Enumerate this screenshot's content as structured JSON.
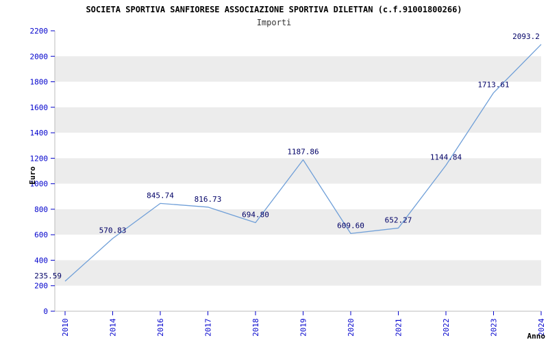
{
  "header": {
    "title": "SOCIETA SPORTIVA SANFIORESE ASSOCIAZIONE SPORTIVA DILETTAN (c.f.91001800266)",
    "subtitle": "Importi"
  },
  "chart_data": {
    "type": "line",
    "title": "SOCIETA SPORTIVA SANFIORESE ASSOCIAZIONE SPORTIVA DILETTAN (c.f.91001800266)",
    "subtitle": "Importi",
    "xlabel": "Anno",
    "ylabel": "Euro",
    "categories": [
      "2010",
      "2014",
      "2016",
      "2017",
      "2018",
      "2019",
      "2020",
      "2021",
      "2022",
      "2023",
      "2024"
    ],
    "values": [
      235.59,
      570.83,
      845.74,
      816.73,
      694.8,
      1187.86,
      609.6,
      652.27,
      1144.84,
      1713.61,
      2093.2
    ],
    "point_labels": [
      "235.59",
      "570.83",
      "845.74",
      "816.73",
      "694.80",
      "1187.86",
      "609.60",
      "652.27",
      "1144.84",
      "1713.61",
      "2093.2"
    ],
    "ylim": [
      0,
      2200
    ],
    "ytick_step": 200,
    "ytick_labels": [
      "0",
      "200",
      "400",
      "600",
      "800",
      "1000",
      "1200",
      "1400",
      "1600",
      "1800",
      "2000",
      "2200"
    ],
    "legend_position": "none",
    "grid": "horizontal-bands",
    "colors": {
      "line": "#6f9fd8",
      "tick_text": "#0000cc",
      "point_label_text": "#000066",
      "band_light": "#ffffff",
      "band_dark": "#ececec",
      "axis": "#bbbbbb"
    }
  }
}
